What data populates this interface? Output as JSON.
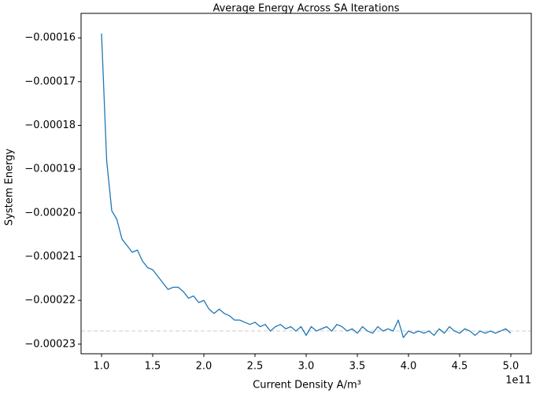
{
  "chart_data": {
    "type": "line",
    "title": "Average Energy Across SA Iterations",
    "x_label": "Current Density A/m³",
    "y_label": "System Energy",
    "x_offset_label": "1e11",
    "x": [
      100000000000.0,
      105000000000.0,
      110000000000.0,
      115000000000.0,
      120000000000.0,
      125000000000.0,
      130000000000.0,
      135000000000.0,
      140000000000.0,
      145000000000.0,
      150000000000.0,
      155000000000.0,
      160000000000.0,
      165000000000.0,
      170000000000.0,
      175000000000.0,
      180000000000.0,
      185000000000.0,
      190000000000.0,
      195000000000.0,
      200000000000.0,
      205000000000.0,
      210000000000.0,
      215000000000.0,
      220000000000.0,
      225000000000.0,
      230000000000.0,
      235000000000.0,
      240000000000.0,
      245000000000.0,
      250000000000.0,
      255000000000.0,
      260000000000.0,
      265000000000.0,
      270000000000.0,
      275000000000.0,
      280000000000.0,
      285000000000.0,
      290000000000.0,
      295000000000.0,
      300000000000.0,
      305000000000.0,
      310000000000.0,
      315000000000.0,
      320000000000.0,
      325000000000.0,
      330000000000.0,
      335000000000.0,
      340000000000.0,
      345000000000.0,
      350000000000.0,
      355000000000.0,
      360000000000.0,
      365000000000.0,
      370000000000.0,
      375000000000.0,
      380000000000.0,
      385000000000.0,
      390000000000.0,
      395000000000.0,
      400000000000.0,
      405000000000.0,
      410000000000.0,
      415000000000.0,
      420000000000.0,
      425000000000.0,
      430000000000.0,
      435000000000.0,
      440000000000.0,
      445000000000.0,
      450000000000.0,
      455000000000.0,
      460000000000.0,
      465000000000.0,
      470000000000.0,
      475000000000.0,
      480000000000.0,
      485000000000.0,
      490000000000.0,
      495000000000.0,
      500000000000.0
    ],
    "series": [
      {
        "name": "Average Energy",
        "color": "#1f77b4",
        "values": [
          -0.000159,
          -0.000188,
          -0.0001995,
          -0.0002015,
          -0.000206,
          -0.0002075,
          -0.000209,
          -0.0002085,
          -0.000211,
          -0.0002125,
          -0.000213,
          -0.0002145,
          -0.000216,
          -0.0002175,
          -0.000217,
          -0.000217,
          -0.000218,
          -0.0002195,
          -0.000219,
          -0.0002205,
          -0.00022,
          -0.000222,
          -0.000223,
          -0.000222,
          -0.000223,
          -0.0002235,
          -0.0002245,
          -0.0002245,
          -0.000225,
          -0.0002255,
          -0.000225,
          -0.000226,
          -0.0002255,
          -0.000227,
          -0.000226,
          -0.0002255,
          -0.0002265,
          -0.000226,
          -0.000227,
          -0.000226,
          -0.000228,
          -0.000226,
          -0.000227,
          -0.0002265,
          -0.000226,
          -0.000227,
          -0.0002255,
          -0.000226,
          -0.000227,
          -0.0002265,
          -0.0002275,
          -0.000226,
          -0.000227,
          -0.0002275,
          -0.000226,
          -0.000227,
          -0.0002265,
          -0.000227,
          -0.0002245,
          -0.0002285,
          -0.000227,
          -0.0002275,
          -0.000227,
          -0.0002275,
          -0.000227,
          -0.000228,
          -0.0002265,
          -0.0002275,
          -0.000226,
          -0.000227,
          -0.0002275,
          -0.0002265,
          -0.000227,
          -0.000228,
          -0.000227,
          -0.0002275,
          -0.000227,
          -0.0002275,
          -0.000227,
          -0.0002265,
          -0.0002275
        ]
      }
    ],
    "hline": {
      "value": -0.000227,
      "color": "#cccccc"
    },
    "xlim": [
      80000000000.0,
      520000000000.0
    ],
    "ylim": [
      -0.0002322,
      -0.0001544
    ],
    "xticks": [
      {
        "value": 100000000000.0,
        "label": "1.0"
      },
      {
        "value": 150000000000.0,
        "label": "1.5"
      },
      {
        "value": 200000000000.0,
        "label": "2.0"
      },
      {
        "value": 250000000000.0,
        "label": "2.5"
      },
      {
        "value": 300000000000.0,
        "label": "3.0"
      },
      {
        "value": 350000000000.0,
        "label": "3.5"
      },
      {
        "value": 400000000000.0,
        "label": "4.0"
      },
      {
        "value": 450000000000.0,
        "label": "4.5"
      },
      {
        "value": 500000000000.0,
        "label": "5.0"
      }
    ],
    "yticks": [
      {
        "value": -0.00016,
        "label": "−0.00016"
      },
      {
        "value": -0.00017,
        "label": "−0.00017"
      },
      {
        "value": -0.00018,
        "label": "−0.00018"
      },
      {
        "value": -0.00019,
        "label": "−0.00019"
      },
      {
        "value": -0.0002,
        "label": "−0.00020"
      },
      {
        "value": -0.00021,
        "label": "−0.00021"
      },
      {
        "value": -0.00022,
        "label": "−0.00022"
      },
      {
        "value": -0.00023,
        "label": "−0.00023"
      }
    ],
    "grid": false
  }
}
